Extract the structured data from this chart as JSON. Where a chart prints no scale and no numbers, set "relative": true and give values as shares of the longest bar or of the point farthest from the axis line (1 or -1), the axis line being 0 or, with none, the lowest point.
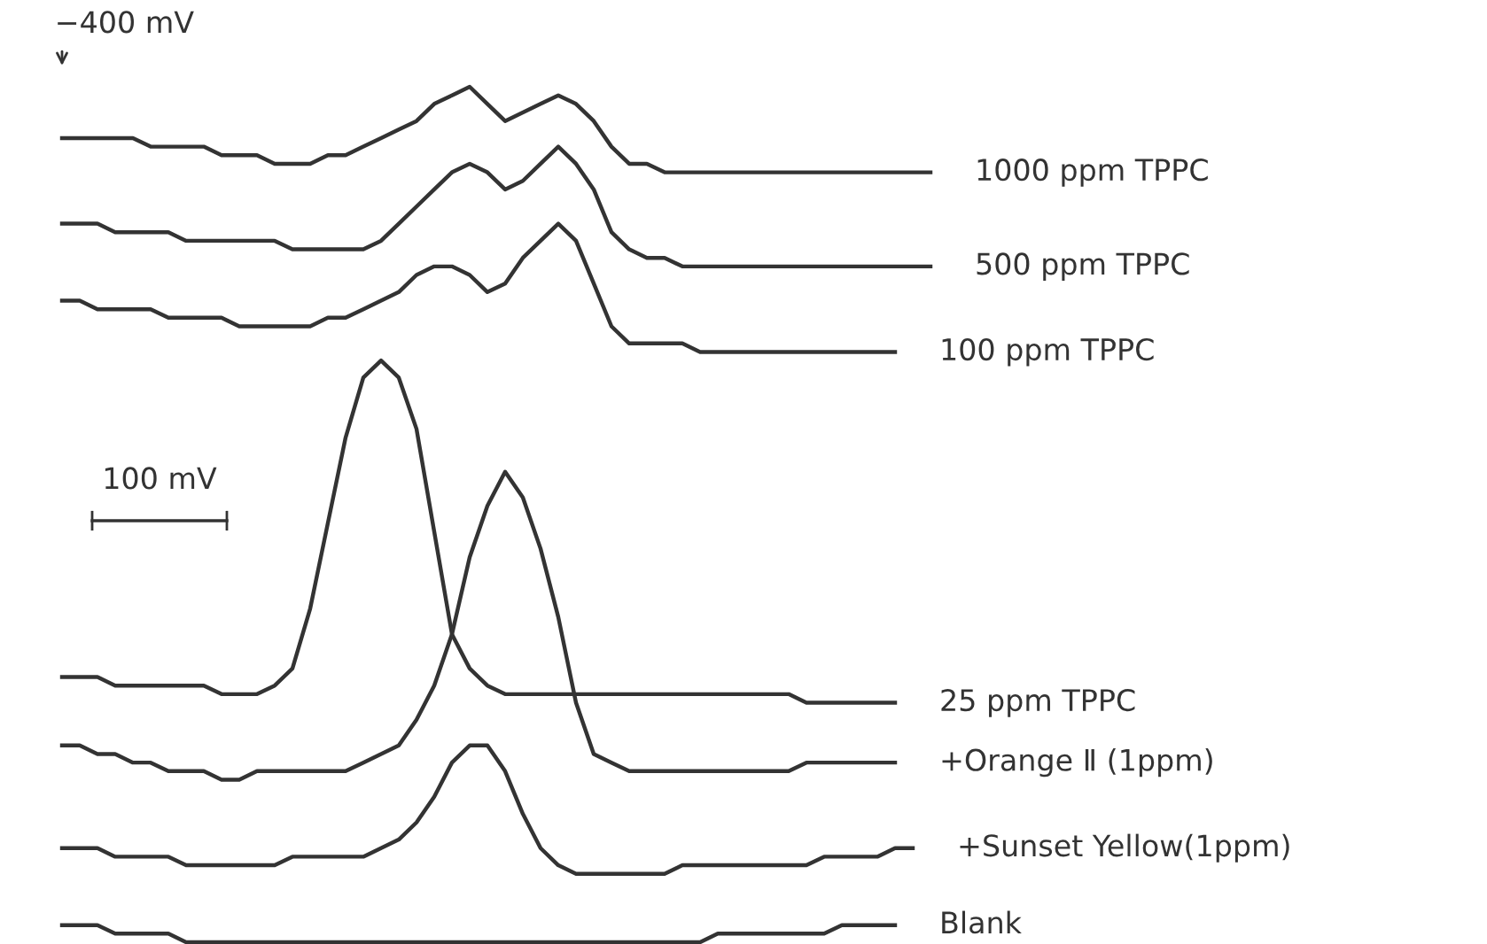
{
  "chart_data": {
    "type": "line",
    "relative": true,
    "line_style": "solid",
    "annotations": [
      "−400 mV",
      "100 mV"
    ],
    "categories": [
      null,
      null,
      null,
      null,
      null,
      null,
      null,
      null,
      null,
      null,
      null,
      null,
      null,
      null,
      null,
      null,
      null,
      null,
      null,
      null,
      null,
      null,
      null,
      null,
      null,
      null,
      null,
      null,
      null,
      null,
      null,
      null,
      null,
      null,
      null,
      null,
      null,
      null,
      null,
      null,
      null,
      null,
      null,
      null,
      null,
      null,
      null,
      null,
      null,
      null
    ],
    "series": [
      {
        "name": "1000 ppm TPPC",
        "color": "#333333",
        "values": [
          0.94,
          0.94,
          0.94,
          0.94,
          0.94,
          0.93,
          0.93,
          0.93,
          0.93,
          0.92,
          0.92,
          0.92,
          0.91,
          0.91,
          0.91,
          0.92,
          0.92,
          0.93,
          0.94,
          0.95,
          0.96,
          0.98,
          0.99,
          1.0,
          0.98,
          0.96,
          0.97,
          0.98,
          0.99,
          0.98,
          0.96,
          0.93,
          0.91,
          0.91,
          0.9,
          0.9,
          0.9,
          0.9,
          0.9,
          0.9,
          0.9,
          0.9,
          0.9,
          0.9,
          0.9,
          0.9,
          0.9,
          0.9,
          0.9,
          0.9
        ]
      },
      {
        "name": "500 ppm TPPC",
        "color": "#333333",
        "values": [
          0.84,
          0.84,
          0.84,
          0.83,
          0.83,
          0.83,
          0.83,
          0.82,
          0.82,
          0.82,
          0.82,
          0.82,
          0.82,
          0.81,
          0.81,
          0.81,
          0.81,
          0.81,
          0.82,
          0.84,
          0.86,
          0.88,
          0.9,
          0.91,
          0.9,
          0.88,
          0.89,
          0.91,
          0.93,
          0.91,
          0.88,
          0.83,
          0.81,
          0.8,
          0.8,
          0.79,
          0.79,
          0.79,
          0.79,
          0.79,
          0.79,
          0.79,
          0.79,
          0.79,
          0.79,
          0.79,
          0.79,
          0.79,
          0.79,
          0.79
        ]
      },
      {
        "name": "100 ppm TPPC",
        "color": "#333333",
        "values": [
          0.75,
          0.75,
          0.74,
          0.74,
          0.74,
          0.74,
          0.73,
          0.73,
          0.73,
          0.73,
          0.72,
          0.72,
          0.72,
          0.72,
          0.72,
          0.73,
          0.73,
          0.74,
          0.75,
          0.76,
          0.78,
          0.79,
          0.79,
          0.78,
          0.76,
          0.77,
          0.8,
          0.82,
          0.84,
          0.82,
          0.77,
          0.72,
          0.7,
          0.7,
          0.7,
          0.7,
          0.69,
          0.69,
          0.69,
          0.69,
          0.69,
          0.69,
          0.69,
          0.69,
          0.69,
          0.69,
          0.69,
          0.69,
          null,
          null
        ]
      },
      {
        "name": "25 ppm TPPC",
        "color": "#333333",
        "values": [
          0.31,
          0.31,
          0.31,
          0.3,
          0.3,
          0.3,
          0.3,
          0.3,
          0.3,
          0.29,
          0.29,
          0.29,
          0.3,
          0.32,
          0.39,
          0.49,
          0.59,
          0.66,
          0.68,
          0.66,
          0.6,
          0.48,
          0.36,
          0.32,
          0.3,
          0.29,
          0.29,
          0.29,
          0.29,
          0.29,
          0.29,
          0.29,
          0.29,
          0.29,
          0.29,
          0.29,
          0.29,
          0.29,
          0.29,
          0.29,
          0.29,
          0.29,
          0.28,
          0.28,
          0.28,
          0.28,
          0.28,
          0.28,
          null,
          null
        ]
      },
      {
        "name": "+Orange Ⅱ (1ppm)",
        "color": "#333333",
        "values": [
          0.23,
          0.23,
          0.22,
          0.22,
          0.21,
          0.21,
          0.2,
          0.2,
          0.2,
          0.19,
          0.19,
          0.2,
          0.2,
          0.2,
          0.2,
          0.2,
          0.2,
          0.21,
          0.22,
          0.23,
          0.26,
          0.3,
          0.36,
          0.45,
          0.51,
          0.55,
          0.52,
          0.46,
          0.38,
          0.28,
          0.22,
          0.21,
          0.2,
          0.2,
          0.2,
          0.2,
          0.2,
          0.2,
          0.2,
          0.2,
          0.2,
          0.2,
          0.21,
          0.21,
          0.21,
          0.21,
          0.21,
          0.21,
          null,
          null
        ]
      },
      {
        "name": "+Sunset Yellow(1ppm)",
        "color": "#333333",
        "values": [
          0.11,
          0.11,
          0.11,
          0.1,
          0.1,
          0.1,
          0.1,
          0.09,
          0.09,
          0.09,
          0.09,
          0.09,
          0.09,
          0.1,
          0.1,
          0.1,
          0.1,
          0.1,
          0.11,
          0.12,
          0.14,
          0.17,
          0.21,
          0.23,
          0.23,
          0.2,
          0.15,
          0.11,
          0.09,
          0.08,
          0.08,
          0.08,
          0.08,
          0.08,
          0.08,
          0.09,
          0.09,
          0.09,
          0.09,
          0.09,
          0.09,
          0.09,
          0.09,
          0.1,
          0.1,
          0.1,
          0.1,
          0.11,
          0.11,
          null
        ]
      },
      {
        "name": "Blank",
        "color": "#333333",
        "values": [
          0.02,
          0.02,
          0.02,
          0.01,
          0.01,
          0.01,
          0.01,
          0.0,
          0.0,
          0.0,
          0.0,
          0.0,
          0.0,
          0.0,
          0.0,
          0.0,
          0.0,
          0.0,
          0.0,
          0.0,
          0.0,
          0.0,
          0.0,
          0.0,
          0.0,
          0.0,
          0.0,
          0.0,
          0.0,
          0.0,
          0.0,
          0.0,
          0.0,
          0.0,
          0.0,
          0.0,
          0.0,
          0.01,
          0.01,
          0.01,
          0.01,
          0.01,
          0.01,
          0.01,
          0.02,
          0.02,
          0.02,
          0.02,
          null,
          null
        ]
      }
    ]
  }
}
